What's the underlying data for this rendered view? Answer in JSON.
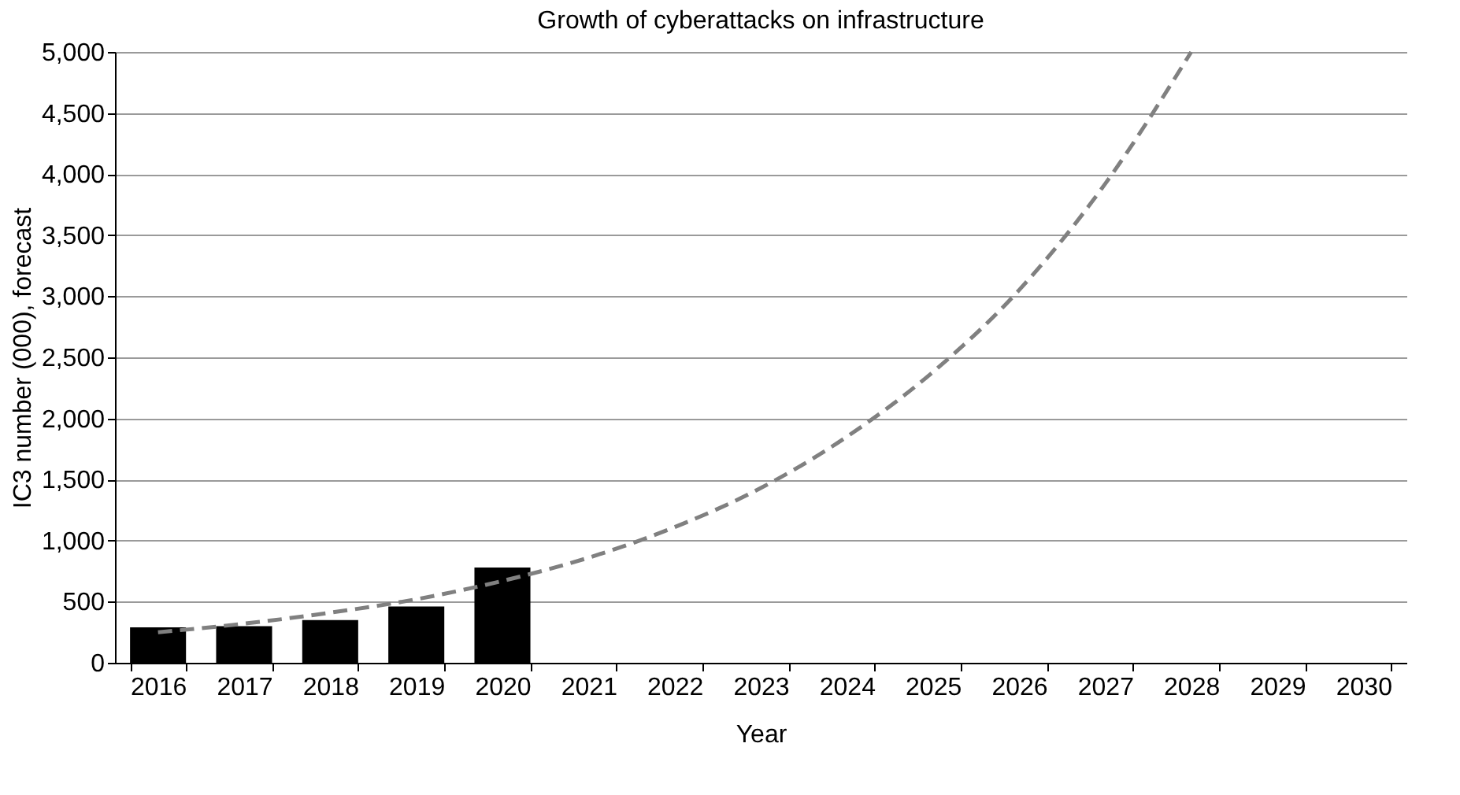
{
  "chart_data": {
    "type": "bar",
    "title": "Growth of cyberattacks on infrastructure",
    "xlabel": "Year",
    "ylabel": "IC3 number (000), forecast",
    "categories": [
      "2016",
      "2017",
      "2018",
      "2019",
      "2020",
      "2021",
      "2022",
      "2023",
      "2024",
      "2025",
      "2026",
      "2027",
      "2028",
      "2029",
      "2030"
    ],
    "series": [
      {
        "color": "#000000",
        "values": [
          290,
          300,
          350,
          460,
          780,
          null,
          null,
          null,
          null,
          null,
          null,
          null,
          null,
          null,
          null
        ]
      },
      {
        "type": "line",
        "color": "#808080",
        "line_style": "dashed",
        "values": [
          250,
          320,
          410,
          520,
          670,
          860,
          1110,
          1430,
          1850,
          2380,
          3050,
          3920,
          5000,
          null,
          null
        ]
      }
    ],
    "ylim": [
      0,
      5000
    ],
    "yticks": [
      0,
      500,
      {
        "value": 1000,
        "label": "1,000"
      },
      {
        "value": 1500,
        "label": "1,500"
      },
      {
        "value": 2000,
        "label": "2,000"
      },
      {
        "value": 2500,
        "label": "2,500"
      },
      {
        "value": 3000,
        "label": "3,000"
      },
      {
        "value": 3500,
        "label": "3,500"
      },
      {
        "value": 4000,
        "label": "4,000"
      },
      {
        "value": 4500,
        "label": "4,500"
      },
      {
        "value": 5000,
        "label": "5,000"
      }
    ],
    "grid": "y"
  }
}
